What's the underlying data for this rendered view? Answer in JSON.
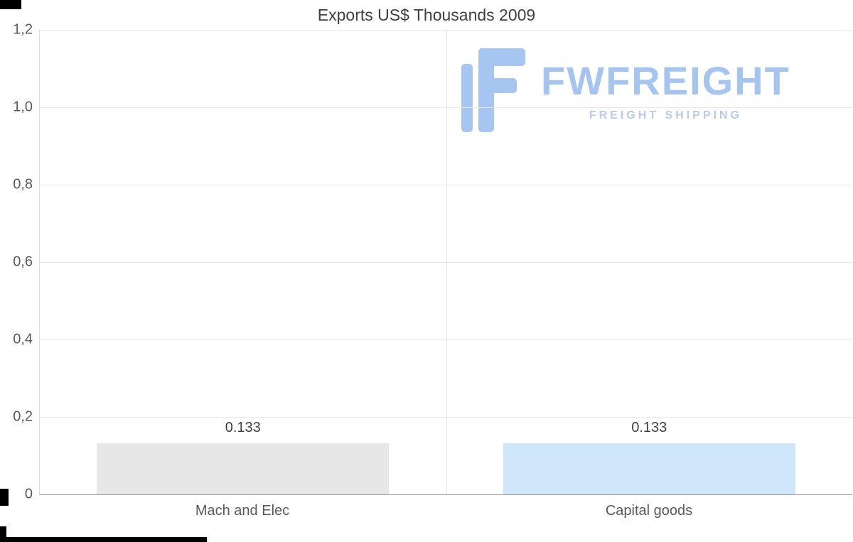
{
  "page": {
    "background": "#ffffff"
  },
  "chart_data": {
    "type": "bar",
    "title": "Exports US$ Thousands 2009",
    "categories": [
      "Mach and Elec",
      "Capital goods"
    ],
    "values": [
      0.133,
      0.133
    ],
    "value_labels": [
      "0.133",
      "0.133"
    ],
    "ylim": [
      0,
      1.2
    ],
    "ytick_labels": [
      "0",
      "0,2",
      "0,4",
      "0,6",
      "0,8",
      "1,0",
      "1,2"
    ],
    "grid": true,
    "legend": "none",
    "bar_colors": [
      "#e7e7e7",
      "#d0e6fa"
    ],
    "gridline_color": "#e8e8e8",
    "axis_left_color": "#dcdcdc",
    "axis_bottom_color": "#969696",
    "title_color": "#3f3f3f",
    "tick_label_color": "#595959",
    "value_label_color": "#3f3f3f"
  },
  "watermark": {
    "brand": "FWFREIGHT",
    "tagline": "FREIGHT SHIPPING",
    "brand_color": "#a5c4ef",
    "tagline_color": "#b7cbf1",
    "icon_color": "#a6c5f0",
    "icon": "fwfreight-logo-icon"
  }
}
